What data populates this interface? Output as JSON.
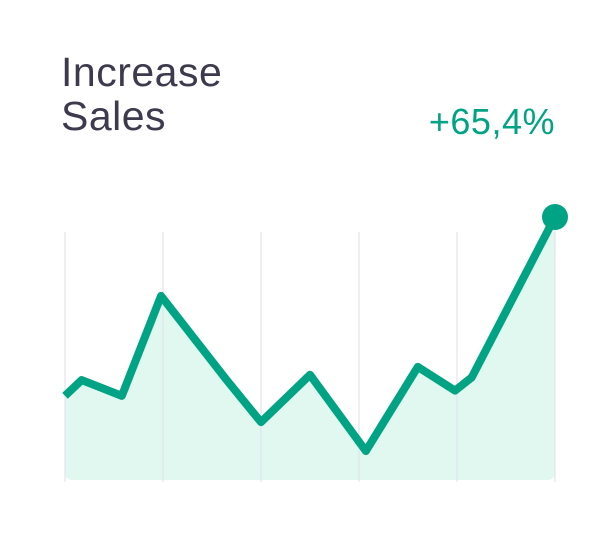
{
  "card": {
    "title_line1": "Increase",
    "title_line2": "Sales",
    "change": "+65,4%"
  },
  "colors": {
    "line": "#00a383",
    "fill": "#e0f8ef",
    "grid": "#e3e4ec",
    "title": "#3d3a4e"
  },
  "chart_data": {
    "type": "area",
    "title": "Increase Sales",
    "xlabel": "",
    "ylabel": "",
    "grid": "vertical",
    "xlim": [
      0,
      5
    ],
    "ylim": [
      0,
      100
    ],
    "x": [
      0,
      0.17,
      0.58,
      0.98,
      1.65,
      2.0,
      2.5,
      3.07,
      3.6,
      3.98,
      4.15,
      5.0
    ],
    "values": [
      32,
      38,
      32,
      70,
      38,
      22,
      40,
      11,
      43,
      34,
      39,
      100
    ],
    "end_marker": true
  }
}
